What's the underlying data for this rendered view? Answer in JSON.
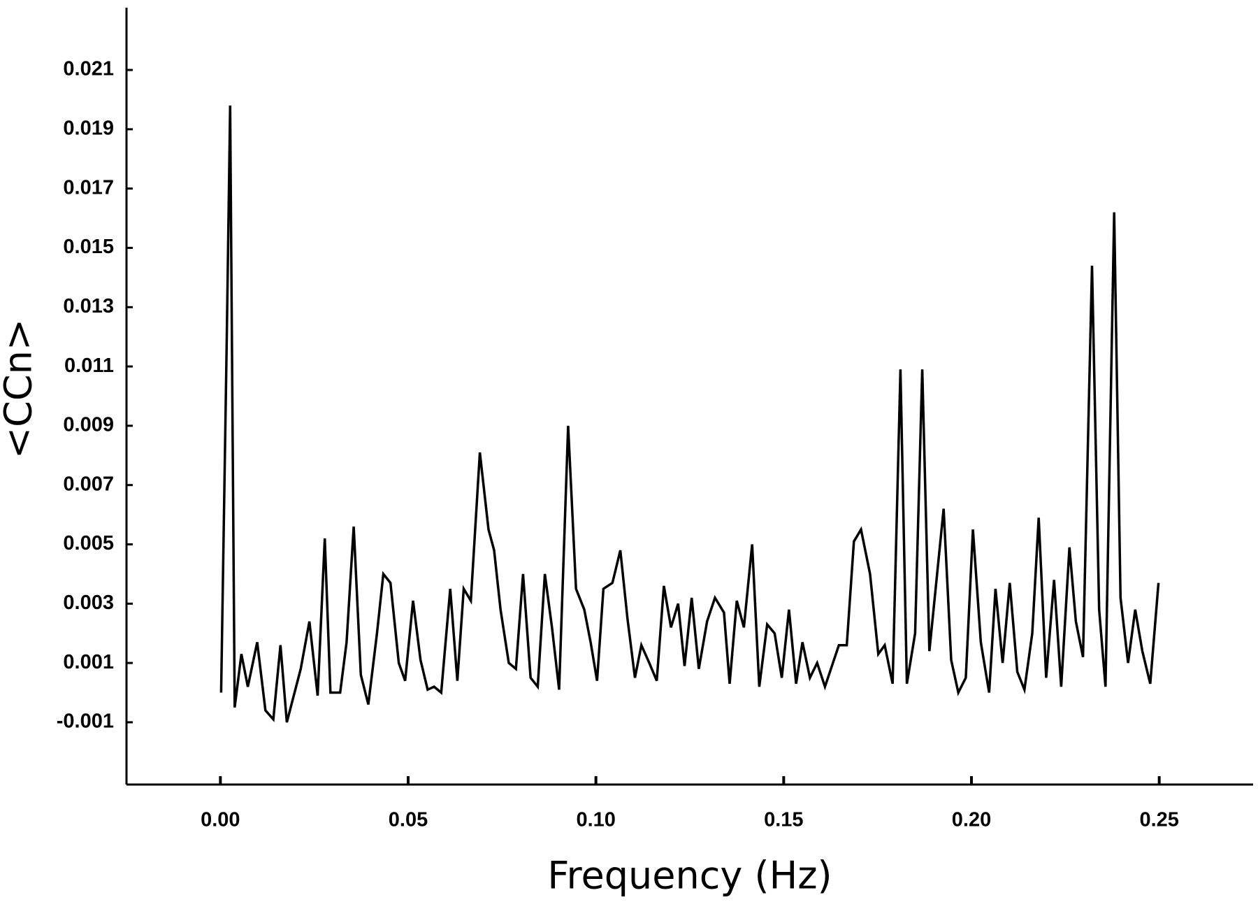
{
  "chart_data": {
    "type": "line",
    "x_label": "Frequency (Hz)",
    "y_label": "<CCn>",
    "xlim": [
      -0.025,
      0.275
    ],
    "ylim": [
      -0.0031,
      0.0231
    ],
    "xticks": [
      {
        "value": 0,
        "label": "0.00"
      },
      {
        "value": 0.05,
        "label": "0.05"
      },
      {
        "value": 0.1,
        "label": "0.10"
      },
      {
        "value": 0.15,
        "label": "0.15"
      },
      {
        "value": 0.2,
        "label": "0.20"
      },
      {
        "value": 0.25,
        "label": "0.25"
      }
    ],
    "yticks": [
      -0.001,
      0.001,
      0.003,
      0.005,
      0.007,
      0.009,
      0.011,
      0.013,
      0.015,
      0.017,
      0.019,
      0.021
    ],
    "color": "#000000",
    "x": [
      0.0002,
      0.0017,
      0.0026,
      0.0038,
      0.0056,
      0.0073,
      0.0098,
      0.012,
      0.0141,
      0.016,
      0.0177,
      0.0214,
      0.0237,
      0.0259,
      0.0278,
      0.0293,
      0.0319,
      0.0336,
      0.0355,
      0.0374,
      0.0394,
      0.0417,
      0.0434,
      0.0453,
      0.0475,
      0.0492,
      0.0513,
      0.0533,
      0.0552,
      0.0569,
      0.0588,
      0.0612,
      0.0631,
      0.0648,
      0.0667,
      0.0691,
      0.0714,
      0.0729,
      0.0746,
      0.0768,
      0.0787,
      0.0806,
      0.0826,
      0.0845,
      0.0864,
      0.0883,
      0.0902,
      0.0926,
      0.0947,
      0.0969,
      0.0986,
      0.1003,
      0.102,
      0.1044,
      0.1065,
      0.1084,
      0.1104,
      0.1121,
      0.1142,
      0.1162,
      0.1181,
      0.12,
      0.1219,
      0.1236,
      0.1255,
      0.1274,
      0.1296,
      0.1317,
      0.1341,
      0.1356,
      0.1375,
      0.1394,
      0.1416,
      0.1435,
      0.1456,
      0.1476,
      0.1495,
      0.1514,
      0.1533,
      0.155,
      0.157,
      0.1589,
      0.161,
      0.1647,
      0.1668,
      0.1687,
      0.1706,
      0.173,
      0.1752,
      0.1769,
      0.179,
      0.1811,
      0.1828,
      0.185,
      0.1869,
      0.1888,
      0.1907,
      0.1926,
      0.1946,
      0.1965,
      0.1985,
      0.2004,
      0.2025,
      0.2047,
      0.2064,
      0.2083,
      0.2102,
      0.2122,
      0.2141,
      0.2162,
      0.2179,
      0.2199,
      0.222,
      0.2239,
      0.2261,
      0.2278,
      0.2297,
      0.2321,
      0.234,
      0.2357,
      0.238,
      0.2397,
      0.2417,
      0.2436,
      0.2455,
      0.2476,
      0.2498
    ],
    "values": [
      0.0,
      0.012,
      0.0198,
      -0.0005,
      0.0013,
      0.0002,
      0.0017,
      -0.0006,
      -0.0009,
      0.0016,
      -0.001,
      0.0008,
      0.0024,
      -0.0001,
      0.0052,
      0.0,
      0.0,
      0.0017,
      0.0056,
      0.0006,
      -0.0004,
      0.002,
      0.004,
      0.0037,
      0.001,
      0.0004,
      0.0031,
      0.0011,
      0.0001,
      0.0002,
      0.0,
      0.0035,
      0.0004,
      0.0035,
      0.0031,
      0.0081,
      0.0055,
      0.0048,
      0.0028,
      0.001,
      0.0008,
      0.004,
      0.0005,
      0.0002,
      0.004,
      0.0022,
      0.0001,
      0.009,
      0.0035,
      0.0028,
      0.0017,
      0.0004,
      0.0035,
      0.0037,
      0.0048,
      0.0025,
      0.0005,
      0.0016,
      0.001,
      0.0004,
      0.0036,
      0.0022,
      0.003,
      0.0009,
      0.0032,
      0.0008,
      0.0024,
      0.0032,
      0.0027,
      0.0003,
      0.0031,
      0.0022,
      0.005,
      0.0002,
      0.0023,
      0.002,
      0.0005,
      0.0028,
      0.0003,
      0.0017,
      0.0005,
      0.001,
      0.0002,
      0.0016,
      0.0016,
      0.0051,
      0.0055,
      0.004,
      0.0013,
      0.0016,
      0.0003,
      0.0109,
      0.0003,
      0.002,
      0.0109,
      0.0014,
      0.0038,
      0.0062,
      0.0011,
      0.0,
      0.0005,
      0.0055,
      0.0017,
      0.0,
      0.0035,
      0.001,
      0.0037,
      0.0007,
      0.0001,
      0.002,
      0.0059,
      0.0005,
      0.0038,
      0.0002,
      0.0049,
      0.0024,
      0.0012,
      0.0144,
      0.0028,
      0.0002,
      0.0162,
      0.0032,
      0.001,
      0.0028,
      0.0014,
      0.0003,
      0.0037
    ]
  }
}
